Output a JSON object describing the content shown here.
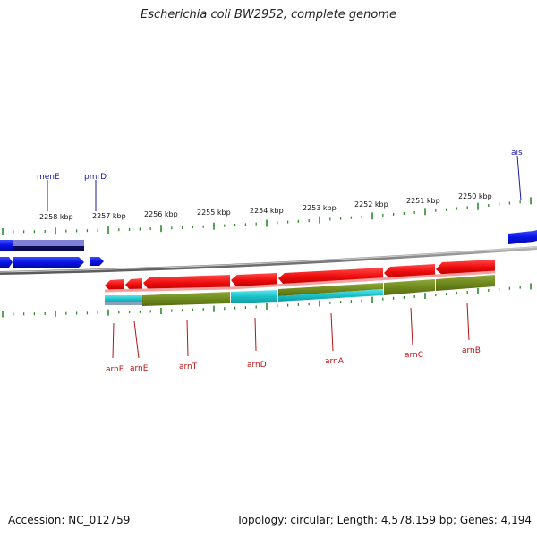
{
  "title": "Escherichia coli BW2952, complete genome",
  "footer": {
    "accession": "Accession: NC_012759",
    "summary": "Topology: circular; Length: 4,578,159 bp; Genes: 4,194"
  },
  "scale": {
    "ticks": [
      "2258 kbp",
      "2257 kbp",
      "2256 kbp",
      "2255 kbp",
      "2254 kbp",
      "2253 kbp",
      "2252 kbp",
      "2251 kbp",
      "2250 kbp"
    ]
  },
  "genes": {
    "top": [
      "menE",
      "pmrD",
      "ais"
    ],
    "bottom": [
      "arnF",
      "arnE",
      "arnT",
      "arnD",
      "arnA",
      "arnC",
      "arnB"
    ]
  },
  "colors": {
    "forward_gene": "#0a14e6",
    "reverse_gene": "#e60a0a",
    "cds_olive": "#6f8a1e",
    "cds_cyan": "#19c2c8",
    "top_label": "#1a1aa8",
    "bottom_label": "#b81414",
    "tick": "#2e8b2e",
    "backbone": "#8a8a8a"
  }
}
